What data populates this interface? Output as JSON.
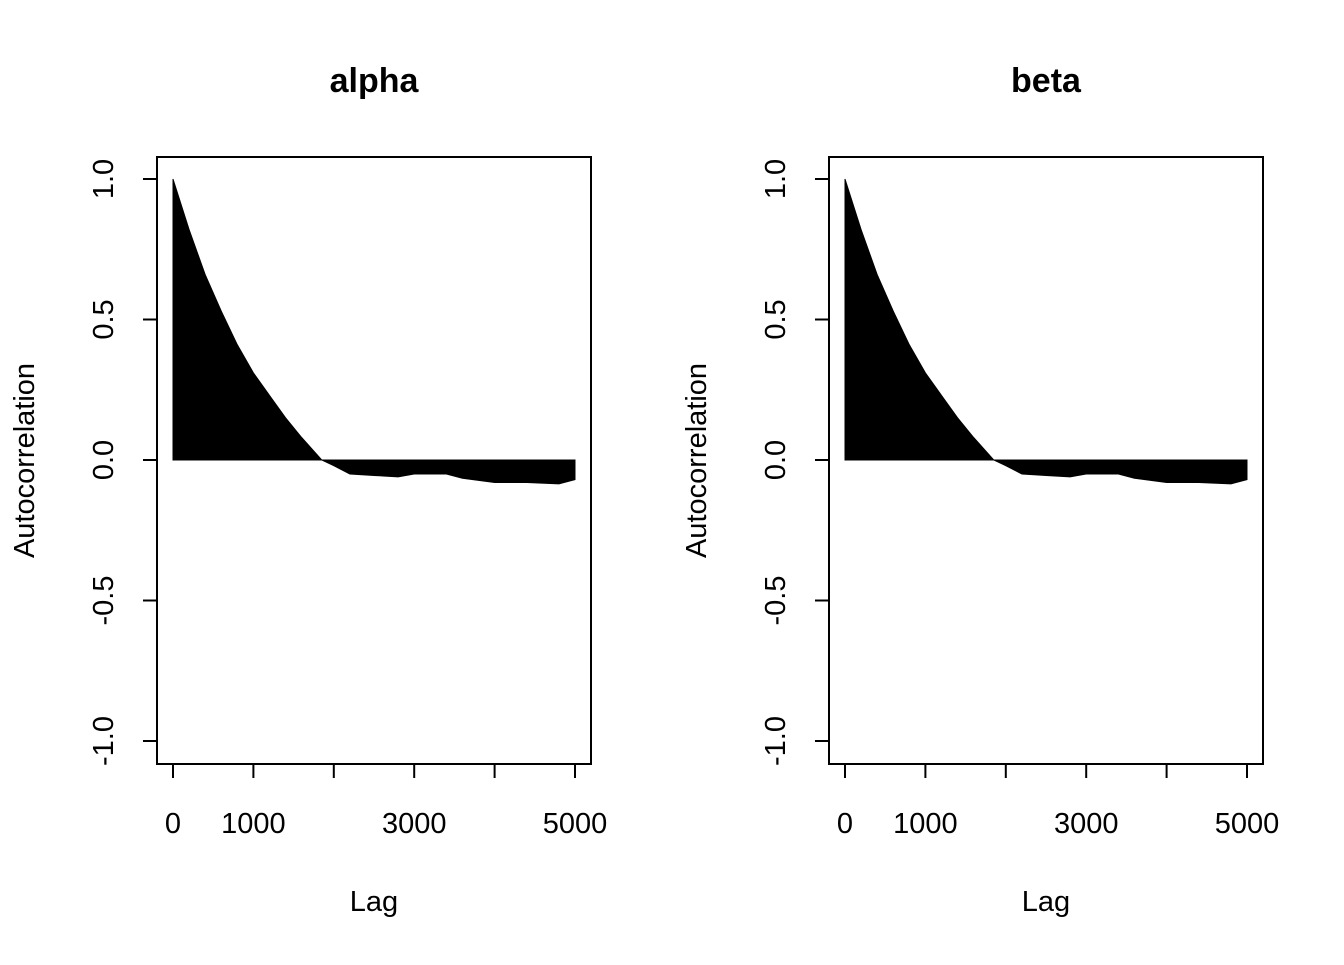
{
  "chart_data": [
    {
      "type": "area",
      "title": "alpha",
      "xlabel": "Lag",
      "ylabel": "Autocorrelation",
      "xlim": [
        0,
        5000
      ],
      "ylim": [
        -1.0,
        1.0
      ],
      "xticks": [
        0,
        1000,
        2000,
        3000,
        4000,
        5000
      ],
      "xtick_labels": [
        "0",
        "1000",
        "",
        "3000",
        "",
        "5000"
      ],
      "yticks": [
        -1.0,
        -0.5,
        0.0,
        0.5,
        1.0
      ],
      "ytick_labels": [
        "-1.0",
        "-0.5",
        "0.0",
        "0.5",
        "1.0"
      ],
      "x": [
        0,
        200,
        400,
        600,
        800,
        1000,
        1200,
        1400,
        1600,
        1850,
        2000,
        2200,
        2500,
        2800,
        3000,
        3400,
        3600,
        4000,
        4400,
        4800,
        5000
      ],
      "y": [
        1.0,
        0.82,
        0.66,
        0.53,
        0.41,
        0.31,
        0.23,
        0.15,
        0.08,
        0.0,
        -0.02,
        -0.05,
        -0.055,
        -0.06,
        -0.05,
        -0.05,
        -0.065,
        -0.08,
        -0.08,
        -0.085,
        -0.07
      ],
      "fill": "#000000"
    },
    {
      "type": "area",
      "title": "beta",
      "xlabel": "Lag",
      "ylabel": "Autocorrelation",
      "xlim": [
        0,
        5000
      ],
      "ylim": [
        -1.0,
        1.0
      ],
      "xticks": [
        0,
        1000,
        2000,
        3000,
        4000,
        5000
      ],
      "xtick_labels": [
        "0",
        "1000",
        "",
        "3000",
        "",
        "5000"
      ],
      "yticks": [
        -1.0,
        -0.5,
        0.0,
        0.5,
        1.0
      ],
      "ytick_labels": [
        "-1.0",
        "-0.5",
        "0.0",
        "0.5",
        "1.0"
      ],
      "x": [
        0,
        200,
        400,
        600,
        800,
        1000,
        1200,
        1400,
        1600,
        1850,
        2000,
        2200,
        2500,
        2800,
        3000,
        3400,
        3600,
        4000,
        4400,
        4800,
        5000
      ],
      "y": [
        1.0,
        0.82,
        0.66,
        0.53,
        0.41,
        0.31,
        0.23,
        0.15,
        0.08,
        0.0,
        -0.02,
        -0.05,
        -0.055,
        -0.06,
        -0.05,
        -0.05,
        -0.065,
        -0.08,
        -0.08,
        -0.085,
        -0.07
      ],
      "fill": "#000000"
    }
  ]
}
